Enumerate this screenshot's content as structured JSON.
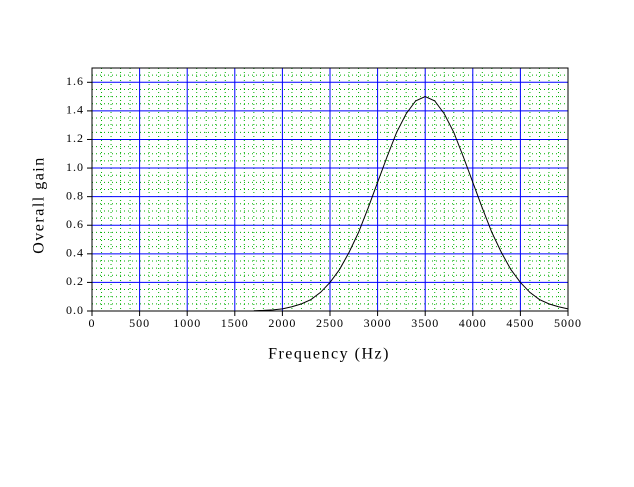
{
  "chart_data": {
    "type": "line",
    "x_label": "Frequency (Hz)",
    "y_label": "Overall gain",
    "x": [
      1700,
      1800,
      1900,
      2000,
      2100,
      2200,
      2300,
      2400,
      2500,
      2600,
      2700,
      2800,
      2900,
      3000,
      3100,
      3200,
      3300,
      3400,
      3500,
      3600,
      3700,
      3800,
      3900,
      4000,
      4100,
      4200,
      4300,
      4400,
      4500,
      4600,
      4700,
      4800,
      4900,
      5000
    ],
    "series": [
      {
        "color": "#000000",
        "values": [
          0.002,
          0.004,
          0.008,
          0.015,
          0.03,
          0.05,
          0.08,
          0.13,
          0.2,
          0.29,
          0.41,
          0.55,
          0.72,
          0.9,
          1.08,
          1.25,
          1.38,
          1.47,
          1.5,
          1.47,
          1.38,
          1.25,
          1.08,
          0.9,
          0.72,
          0.55,
          0.41,
          0.29,
          0.2,
          0.13,
          0.08,
          0.05,
          0.03,
          0.015
        ]
      }
    ],
    "xlim": [
      0,
      5000
    ],
    "xticks": [
      0,
      500,
      1000,
      1500,
      2000,
      2500,
      3000,
      3500,
      4000,
      4500,
      5000
    ],
    "ylim": [
      0,
      1.7
    ],
    "yticks": [
      {
        "value": 0,
        "label": "0.0"
      },
      0.2,
      0.4,
      0.6,
      0.8,
      {
        "value": 1,
        "label": "1.0"
      },
      1.2,
      1.4,
      1.6
    ],
    "grid": true,
    "grid_color": "#0000ff",
    "minor_grid_color": "#00b000"
  }
}
